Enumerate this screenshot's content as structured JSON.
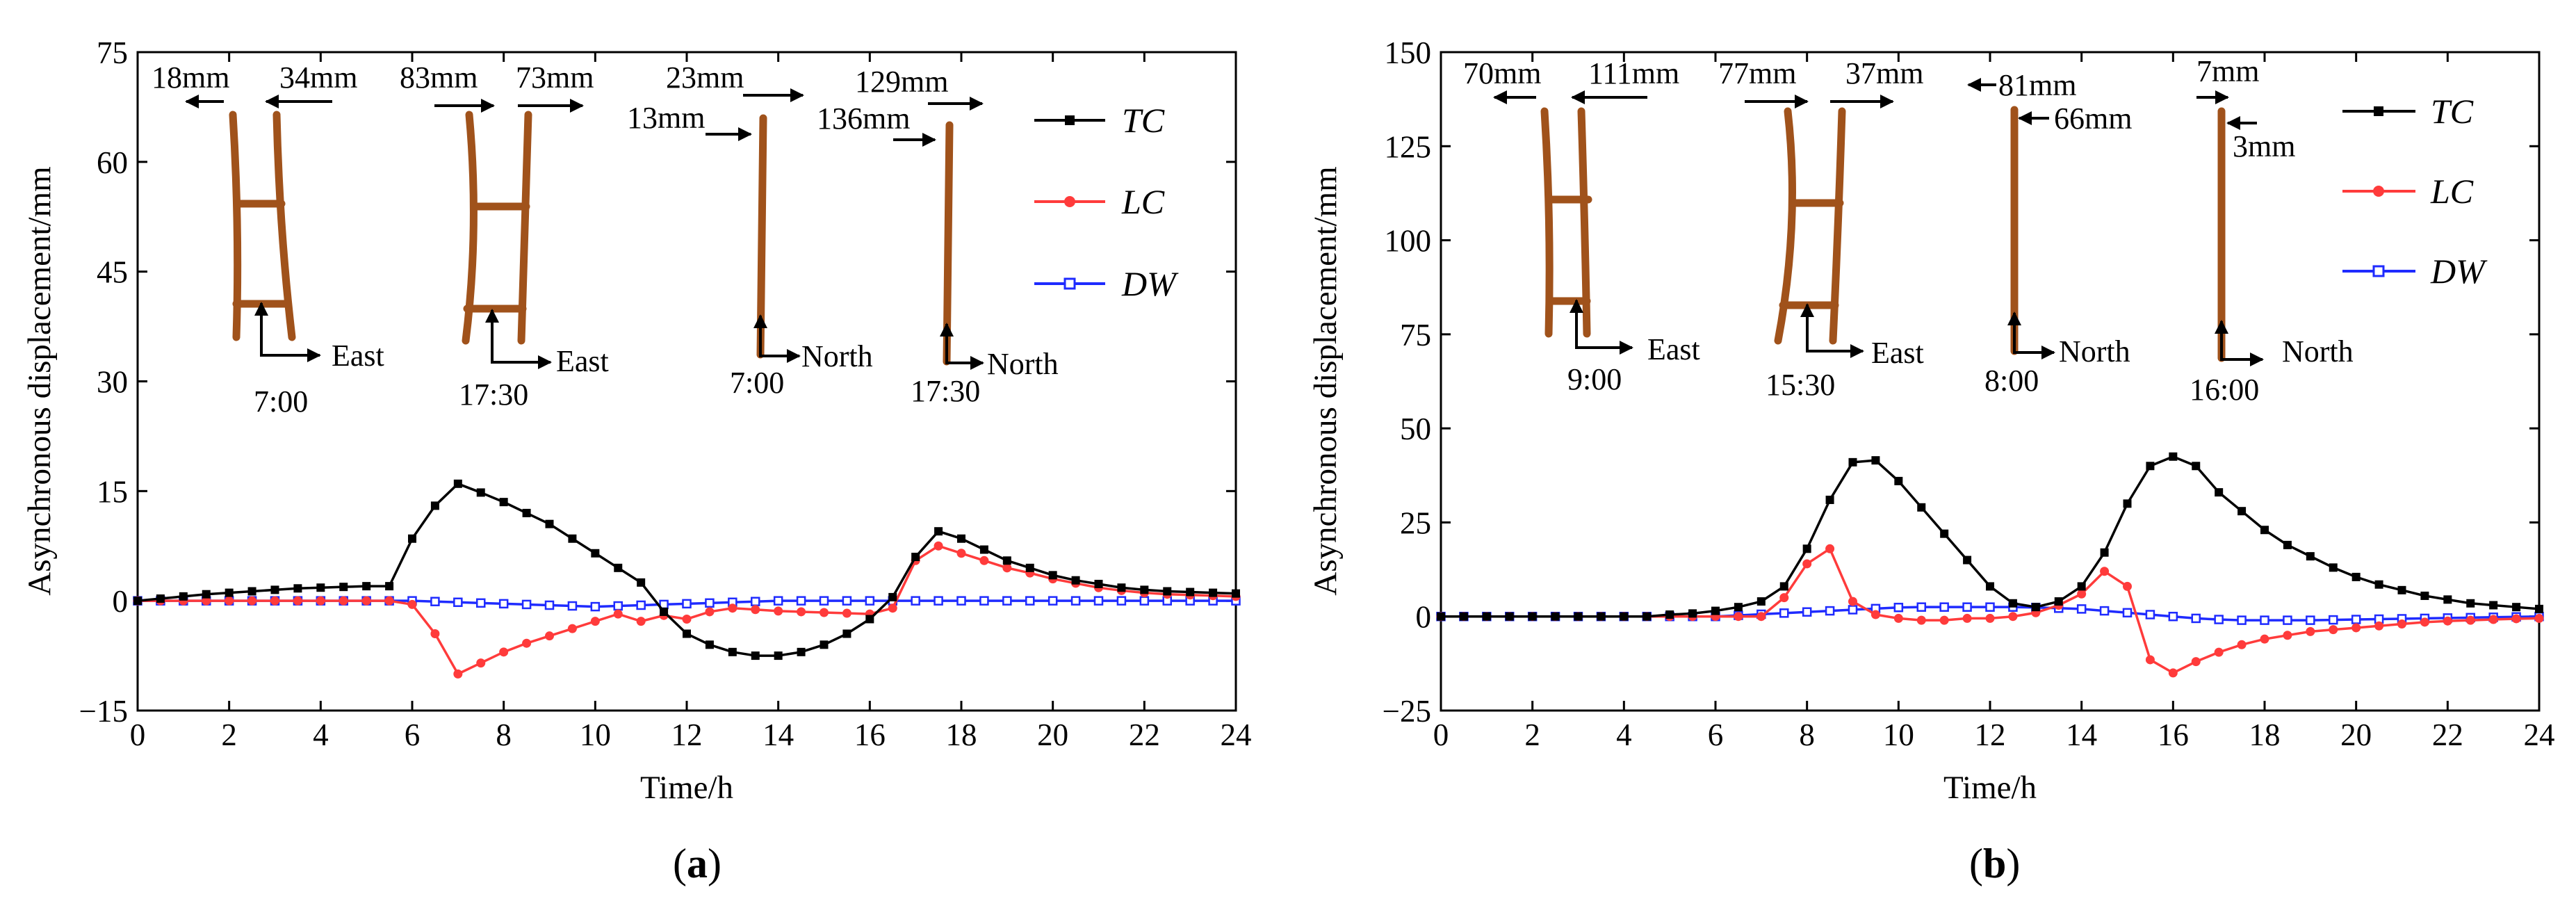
{
  "chart_data": [
    {
      "panel_label_open": "(",
      "panel_label_letter": "a",
      "panel_label_close": ")",
      "type": "line",
      "xlabel": "Time/h",
      "ylabel": "Asynchronous displacement/mm",
      "xlim": [
        0,
        24
      ],
      "ylim": [
        -15,
        75
      ],
      "xticks": [
        "0",
        "2",
        "4",
        "6",
        "8",
        "10",
        "12",
        "14",
        "16",
        "18",
        "20",
        "22",
        "24"
      ],
      "yticks": [
        "−15",
        "0",
        "15",
        "30",
        "45",
        "60",
        "75"
      ],
      "x": [
        0,
        0.5,
        1,
        1.5,
        2,
        2.5,
        3,
        3.5,
        4,
        4.5,
        5,
        5.5,
        6,
        6.5,
        7,
        7.5,
        8,
        8.5,
        9,
        9.5,
        10,
        10.5,
        11,
        11.5,
        12,
        12.5,
        13,
        13.5,
        14,
        14.5,
        15,
        15.5,
        16,
        16.5,
        17,
        17.5,
        18,
        18.5,
        19,
        19.5,
        20,
        20.5,
        21,
        21.5,
        22,
        22.5,
        23,
        23.5,
        24
      ],
      "series": [
        {
          "name": "TC",
          "color": "#000000",
          "marker": "square",
          "values": [
            0,
            0.3,
            0.6,
            0.9,
            1.1,
            1.3,
            1.5,
            1.7,
            1.8,
            1.9,
            2.0,
            2.0,
            8.5,
            13.0,
            16.0,
            14.8,
            13.5,
            12.0,
            10.5,
            8.5,
            6.5,
            4.5,
            2.5,
            -1.5,
            -4.5,
            -6.0,
            -7.0,
            -7.5,
            -7.5,
            -7.0,
            -6.0,
            -4.5,
            -2.5,
            0.5,
            6.0,
            9.5,
            8.5,
            7.0,
            5.5,
            4.5,
            3.5,
            2.8,
            2.3,
            1.8,
            1.5,
            1.3,
            1.2,
            1.1,
            1.0
          ]
        },
        {
          "name": "LC",
          "color": "#ff3b3b",
          "marker": "circle",
          "values": [
            0,
            0,
            0,
            0,
            0,
            0,
            0,
            0,
            0,
            0,
            0,
            0,
            -0.5,
            -4.5,
            -10.0,
            -8.5,
            -7.0,
            -5.8,
            -4.8,
            -3.8,
            -2.8,
            -1.8,
            -2.8,
            -2.0,
            -2.5,
            -1.5,
            -1.0,
            -1.2,
            -1.4,
            -1.5,
            -1.6,
            -1.7,
            -1.8,
            -1.0,
            5.5,
            7.5,
            6.5,
            5.5,
            4.5,
            3.8,
            3.0,
            2.4,
            1.8,
            1.4,
            1.1,
            0.9,
            0.8,
            0.7,
            0.6
          ]
        },
        {
          "name": "DW",
          "color": "#1f2bff",
          "marker": "open-square",
          "values": [
            0,
            0,
            0,
            0,
            0,
            0,
            0,
            0,
            0,
            0,
            0,
            0,
            0,
            -0.1,
            -0.2,
            -0.3,
            -0.4,
            -0.5,
            -0.6,
            -0.7,
            -0.8,
            -0.7,
            -0.6,
            -0.5,
            -0.4,
            -0.3,
            -0.2,
            -0.1,
            0,
            0,
            0,
            0,
            0,
            0,
            0,
            0,
            0,
            0,
            0,
            0,
            0,
            0,
            0,
            0,
            0,
            0,
            0,
            0,
            0
          ]
        }
      ],
      "legend": "top-right",
      "annotations": {
        "labels": [
          "18mm",
          "34mm",
          "83mm",
          "73mm",
          "23mm",
          "13mm",
          "129mm",
          "136mm"
        ],
        "directions": [
          "East",
          "East",
          "North",
          "North"
        ],
        "times": [
          "7:00",
          "17:30",
          "7:00",
          "17:30"
        ]
      }
    },
    {
      "panel_label_open": "(",
      "panel_label_letter": "b",
      "panel_label_close": ")",
      "type": "line",
      "xlabel": "Time/h",
      "ylabel": "Asynchronous displacement/mm",
      "xlim": [
        0,
        24
      ],
      "ylim": [
        -25,
        150
      ],
      "xticks": [
        "0",
        "2",
        "4",
        "6",
        "8",
        "10",
        "12",
        "14",
        "16",
        "18",
        "20",
        "22",
        "24"
      ],
      "yticks": [
        "−25",
        "0",
        "25",
        "50",
        "75",
        "100",
        "125",
        "150"
      ],
      "x": [
        0,
        0.5,
        1,
        1.5,
        2,
        2.5,
        3,
        3.5,
        4,
        4.5,
        5,
        5.5,
        6,
        6.5,
        7,
        7.5,
        8,
        8.5,
        9,
        9.5,
        10,
        10.5,
        11,
        11.5,
        12,
        12.5,
        13,
        13.5,
        14,
        14.5,
        15,
        15.5,
        16,
        16.5,
        17,
        17.5,
        18,
        18.5,
        19,
        19.5,
        20,
        20.5,
        21,
        21.5,
        22,
        22.5,
        23,
        23.5,
        24
      ],
      "series": [
        {
          "name": "TC",
          "color": "#000000",
          "marker": "square",
          "values": [
            0,
            0,
            0,
            0,
            0,
            0,
            0,
            0,
            0,
            0,
            0.5,
            0.8,
            1.5,
            2.5,
            4.0,
            8.0,
            18.0,
            31.0,
            41.0,
            41.5,
            36.0,
            29.0,
            22.0,
            15.0,
            8.0,
            3.5,
            2.5,
            4.0,
            8.0,
            17.0,
            30.0,
            40.0,
            42.5,
            40.0,
            33.0,
            28.0,
            23.0,
            19.0,
            16.0,
            13.0,
            10.5,
            8.5,
            7.0,
            5.5,
            4.5,
            3.5,
            3.0,
            2.5,
            2.0
          ]
        },
        {
          "name": "LC",
          "color": "#ff3b3b",
          "marker": "circle",
          "values": [
            0,
            0,
            0,
            0,
            0,
            0,
            0,
            0,
            0,
            0,
            0,
            0,
            0,
            0,
            0,
            5.0,
            14.0,
            18.0,
            4.0,
            0.5,
            -0.5,
            -1.0,
            -1.0,
            -0.5,
            -0.5,
            0,
            1.0,
            3.0,
            6.0,
            12.0,
            8.0,
            -11.5,
            -15.0,
            -12.0,
            -9.5,
            -7.5,
            -6.0,
            -5.0,
            -4.0,
            -3.5,
            -3.0,
            -2.5,
            -2.0,
            -1.5,
            -1.2,
            -1.0,
            -0.8,
            -0.6,
            -0.5
          ]
        },
        {
          "name": "DW",
          "color": "#1f2bff",
          "marker": "open-square",
          "values": [
            0,
            0,
            0,
            0,
            0,
            0,
            0,
            0,
            0,
            0,
            0,
            0,
            0,
            0.3,
            0.6,
            0.9,
            1.2,
            1.5,
            1.8,
            2.1,
            2.4,
            2.5,
            2.5,
            2.5,
            2.5,
            2.5,
            2.4,
            2.2,
            2.0,
            1.5,
            1.0,
            0.5,
            0,
            -0.5,
            -0.8,
            -1.0,
            -1.0,
            -1.0,
            -1.0,
            -0.9,
            -0.8,
            -0.7,
            -0.6,
            -0.5,
            -0.4,
            -0.3,
            -0.2,
            -0.1,
            0
          ]
        }
      ],
      "legend": "top-right",
      "annotations": {
        "labels": [
          "70mm",
          "111mm",
          "77mm",
          "37mm",
          "81mm",
          "66mm",
          "7mm",
          "3mm"
        ],
        "directions": [
          "East",
          "East",
          "North",
          "North"
        ],
        "times": [
          "9:00",
          "15:30",
          "8:00",
          "16:00"
        ]
      }
    }
  ]
}
